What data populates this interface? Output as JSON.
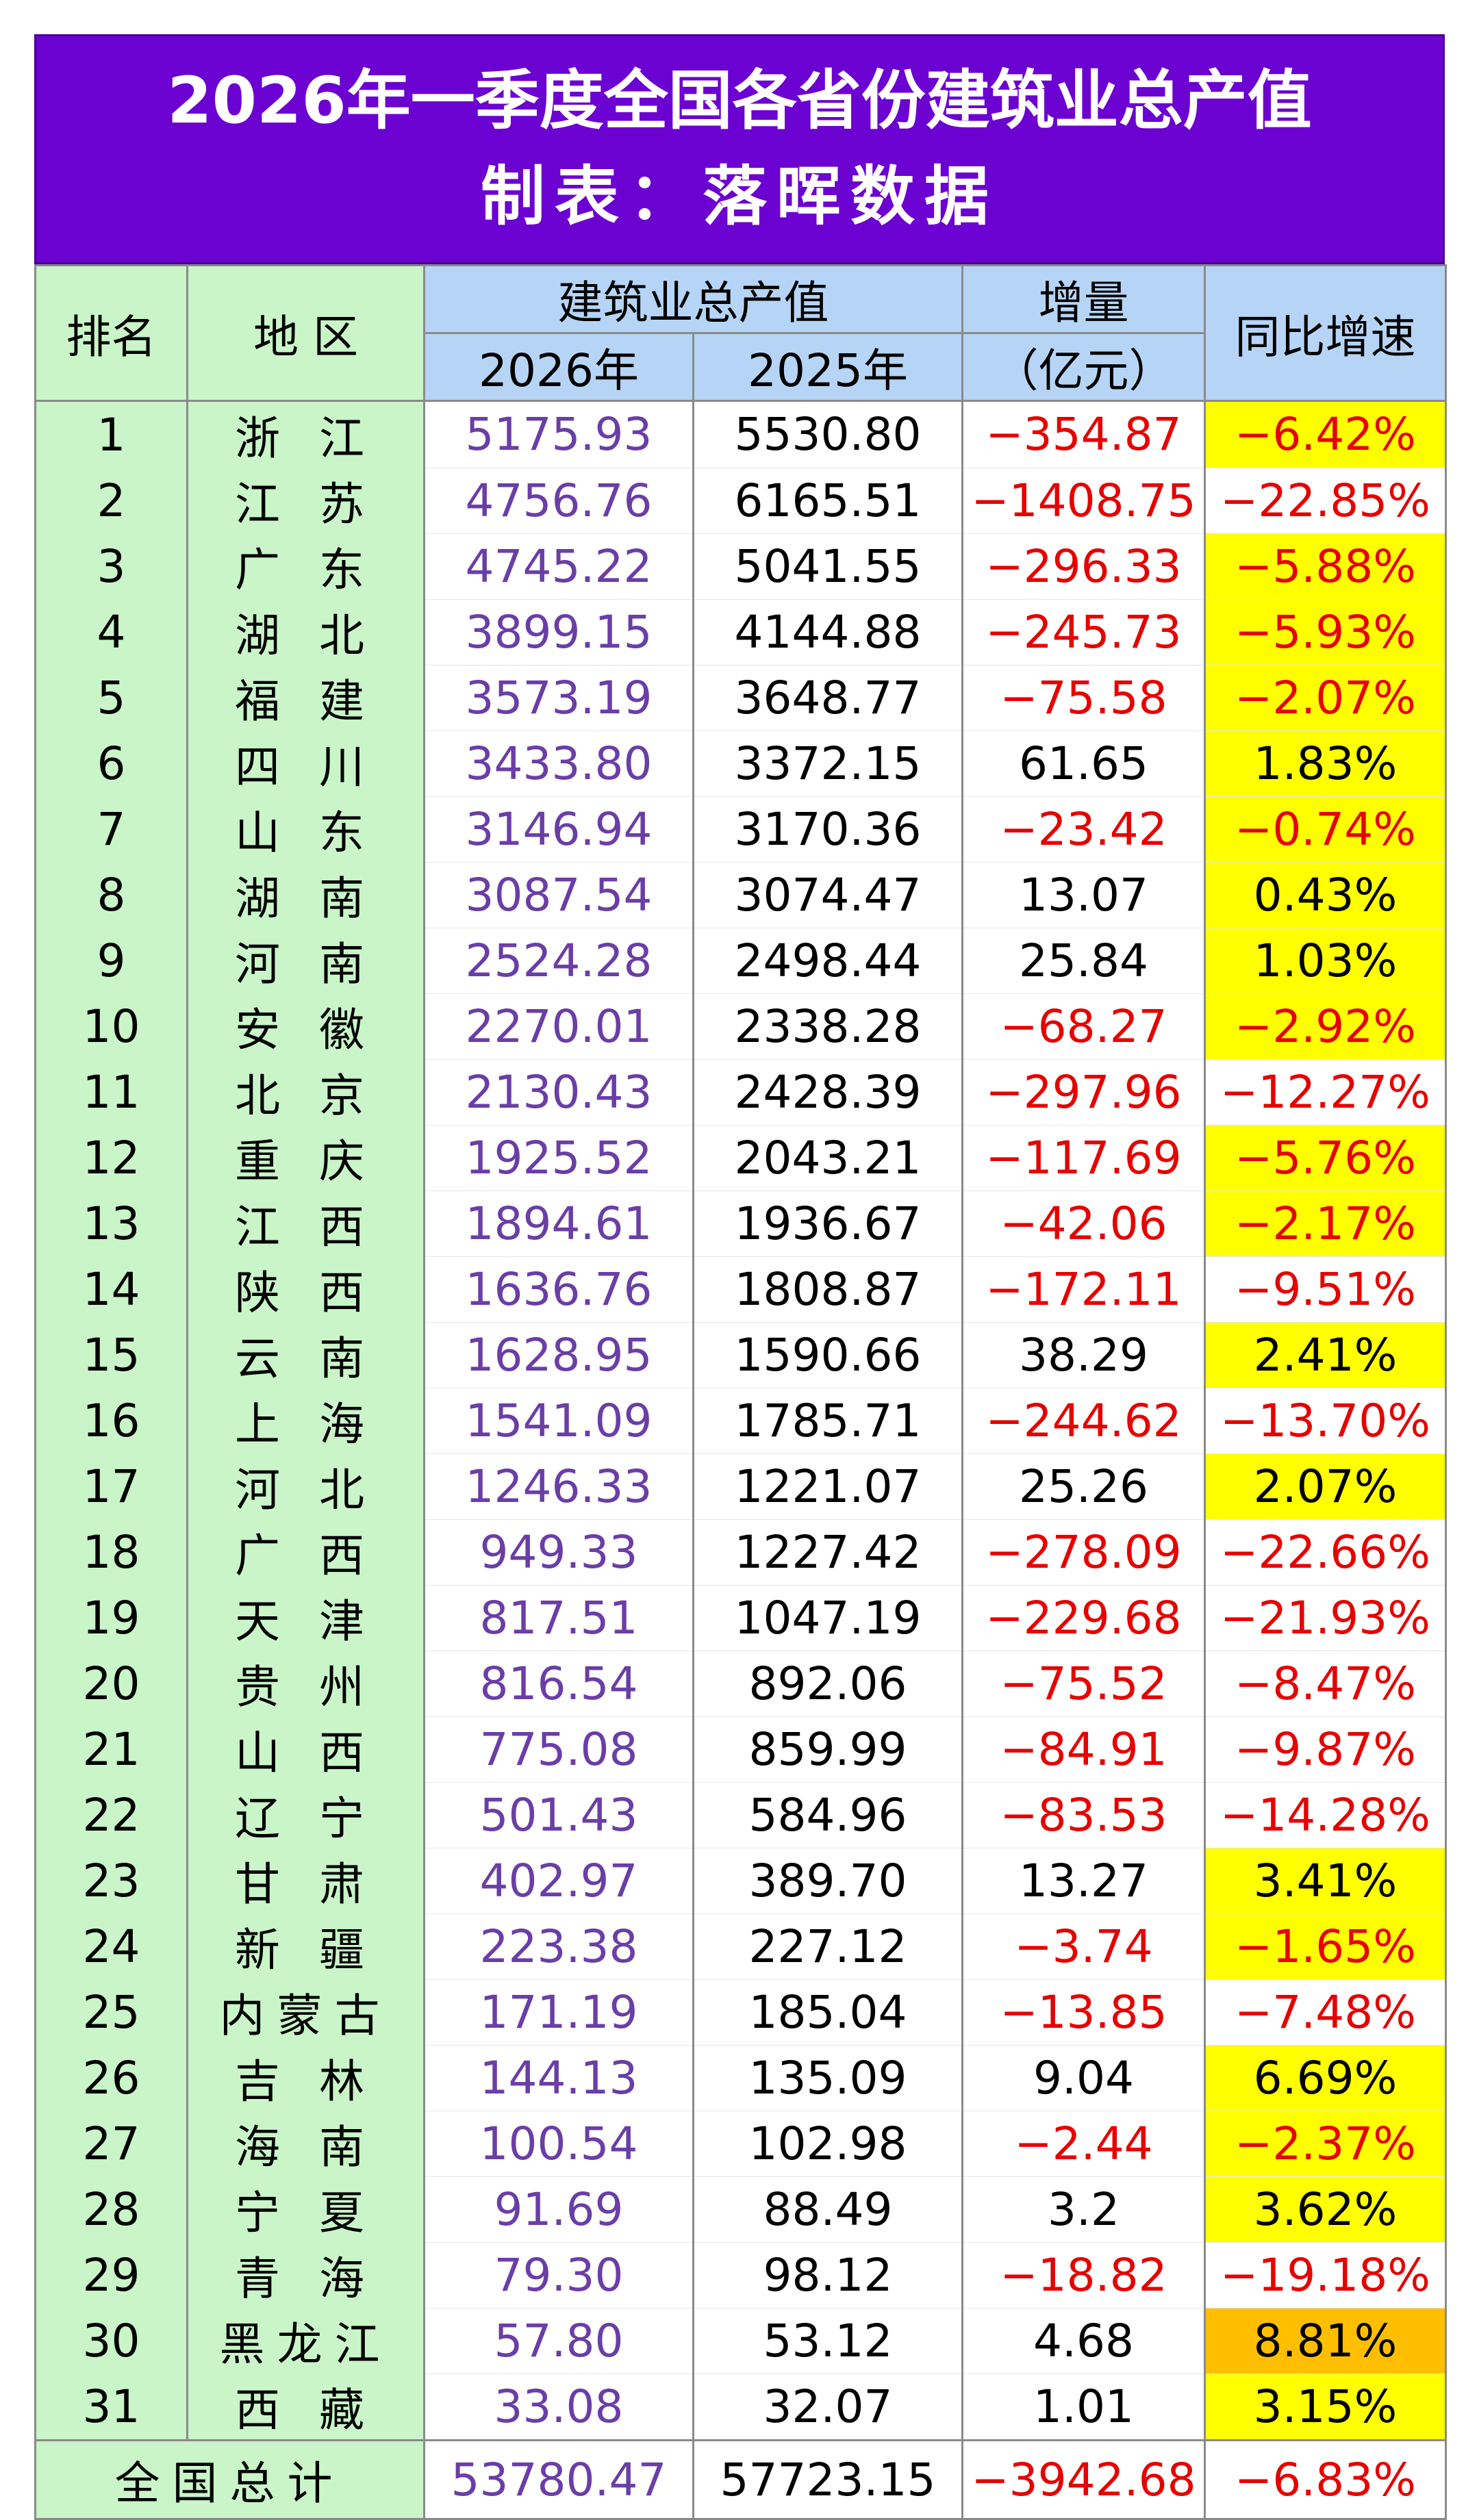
{
  "title": "2026年一季度全国各省份建筑业总产值",
  "subtitle": "制表：落晖数据",
  "headers": {
    "rank": "排名",
    "region": "地 区",
    "output": "建筑业总产值",
    "y2026": "2026年",
    "y2025": "2025年",
    "delta": "增量",
    "delta_unit": "（亿元）",
    "growth": "同比增速"
  },
  "colors": {
    "title_bg": "#6b02d1",
    "header_bg": "#b6d5f6",
    "rank_bg": "#c9f5c9",
    "highlight": "#ffff00",
    "highlight_top": "#ffbf00",
    "negative": "#e60000",
    "value2026": "#6a3ea6"
  },
  "rows": [
    {
      "rank": "1",
      "region": "浙 江",
      "v2026": "5175.93",
      "v2025": "5530.80",
      "delta": "−354.87",
      "growth": "−6.42%",
      "hl": "yellow"
    },
    {
      "rank": "2",
      "region": "江 苏",
      "v2026": "4756.76",
      "v2025": "6165.51",
      "delta": "−1408.75",
      "growth": "−22.85%",
      "hl": "none"
    },
    {
      "rank": "3",
      "region": "广 东",
      "v2026": "4745.22",
      "v2025": "5041.55",
      "delta": "−296.33",
      "growth": "−5.88%",
      "hl": "yellow"
    },
    {
      "rank": "4",
      "region": "湖 北",
      "v2026": "3899.15",
      "v2025": "4144.88",
      "delta": "−245.73",
      "growth": "−5.93%",
      "hl": "yellow"
    },
    {
      "rank": "5",
      "region": "福 建",
      "v2026": "3573.19",
      "v2025": "3648.77",
      "delta": "−75.58",
      "growth": "−2.07%",
      "hl": "yellow"
    },
    {
      "rank": "6",
      "region": "四 川",
      "v2026": "3433.80",
      "v2025": "3372.15",
      "delta": "61.65",
      "growth": "1.83%",
      "hl": "yellow"
    },
    {
      "rank": "7",
      "region": "山 东",
      "v2026": "3146.94",
      "v2025": "3170.36",
      "delta": "−23.42",
      "growth": "−0.74%",
      "hl": "yellow"
    },
    {
      "rank": "8",
      "region": "湖 南",
      "v2026": "3087.54",
      "v2025": "3074.47",
      "delta": "13.07",
      "growth": "0.43%",
      "hl": "yellow"
    },
    {
      "rank": "9",
      "region": "河 南",
      "v2026": "2524.28",
      "v2025": "2498.44",
      "delta": "25.84",
      "growth": "1.03%",
      "hl": "yellow"
    },
    {
      "rank": "10",
      "region": "安 徽",
      "v2026": "2270.01",
      "v2025": "2338.28",
      "delta": "−68.27",
      "growth": "−2.92%",
      "hl": "yellow"
    },
    {
      "rank": "11",
      "region": "北 京",
      "v2026": "2130.43",
      "v2025": "2428.39",
      "delta": "−297.96",
      "growth": "−12.27%",
      "hl": "none"
    },
    {
      "rank": "12",
      "region": "重 庆",
      "v2026": "1925.52",
      "v2025": "2043.21",
      "delta": "−117.69",
      "growth": "−5.76%",
      "hl": "yellow"
    },
    {
      "rank": "13",
      "region": "江 西",
      "v2026": "1894.61",
      "v2025": "1936.67",
      "delta": "−42.06",
      "growth": "−2.17%",
      "hl": "yellow"
    },
    {
      "rank": "14",
      "region": "陕 西",
      "v2026": "1636.76",
      "v2025": "1808.87",
      "delta": "−172.11",
      "growth": "−9.51%",
      "hl": "none"
    },
    {
      "rank": "15",
      "region": "云 南",
      "v2026": "1628.95",
      "v2025": "1590.66",
      "delta": "38.29",
      "growth": "2.41%",
      "hl": "yellow"
    },
    {
      "rank": "16",
      "region": "上 海",
      "v2026": "1541.09",
      "v2025": "1785.71",
      "delta": "−244.62",
      "growth": "−13.70%",
      "hl": "none"
    },
    {
      "rank": "17",
      "region": "河 北",
      "v2026": "1246.33",
      "v2025": "1221.07",
      "delta": "25.26",
      "growth": "2.07%",
      "hl": "yellow"
    },
    {
      "rank": "18",
      "region": "广 西",
      "v2026": "949.33",
      "v2025": "1227.42",
      "delta": "−278.09",
      "growth": "−22.66%",
      "hl": "none"
    },
    {
      "rank": "19",
      "region": "天 津",
      "v2026": "817.51",
      "v2025": "1047.19",
      "delta": "−229.68",
      "growth": "−21.93%",
      "hl": "none"
    },
    {
      "rank": "20",
      "region": "贵 州",
      "v2026": "816.54",
      "v2025": "892.06",
      "delta": "−75.52",
      "growth": "−8.47%",
      "hl": "none"
    },
    {
      "rank": "21",
      "region": "山 西",
      "v2026": "775.08",
      "v2025": "859.99",
      "delta": "−84.91",
      "growth": "−9.87%",
      "hl": "none"
    },
    {
      "rank": "22",
      "region": "辽 宁",
      "v2026": "501.43",
      "v2025": "584.96",
      "delta": "−83.53",
      "growth": "−14.28%",
      "hl": "none"
    },
    {
      "rank": "23",
      "region": "甘 肃",
      "v2026": "402.97",
      "v2025": "389.70",
      "delta": "13.27",
      "growth": "3.41%",
      "hl": "yellow"
    },
    {
      "rank": "24",
      "region": "新 疆",
      "v2026": "223.38",
      "v2025": "227.12",
      "delta": "−3.74",
      "growth": "−1.65%",
      "hl": "yellow"
    },
    {
      "rank": "25",
      "region": "内蒙古",
      "v2026": "171.19",
      "v2025": "185.04",
      "delta": "−13.85",
      "growth": "−7.48%",
      "hl": "none"
    },
    {
      "rank": "26",
      "region": "吉 林",
      "v2026": "144.13",
      "v2025": "135.09",
      "delta": "9.04",
      "growth": "6.69%",
      "hl": "yellow"
    },
    {
      "rank": "27",
      "region": "海 南",
      "v2026": "100.54",
      "v2025": "102.98",
      "delta": "−2.44",
      "growth": "−2.37%",
      "hl": "yellow"
    },
    {
      "rank": "28",
      "region": "宁 夏",
      "v2026": "91.69",
      "v2025": "88.49",
      "delta": "3.2",
      "growth": "3.62%",
      "hl": "yellow"
    },
    {
      "rank": "29",
      "region": "青 海",
      "v2026": "79.30",
      "v2025": "98.12",
      "delta": "−18.82",
      "growth": "−19.18%",
      "hl": "none"
    },
    {
      "rank": "30",
      "region": "黑龙江",
      "v2026": "57.80",
      "v2025": "53.12",
      "delta": "4.68",
      "growth": "8.81%",
      "hl": "orange"
    },
    {
      "rank": "31",
      "region": "西 藏",
      "v2026": "33.08",
      "v2025": "32.07",
      "delta": "1.01",
      "growth": "3.15%",
      "hl": "yellow"
    }
  ],
  "total": {
    "label": "全国总计",
    "v2026": "53780.47",
    "v2025": "57723.15",
    "delta": "−3942.68",
    "growth": "−6.83%"
  }
}
